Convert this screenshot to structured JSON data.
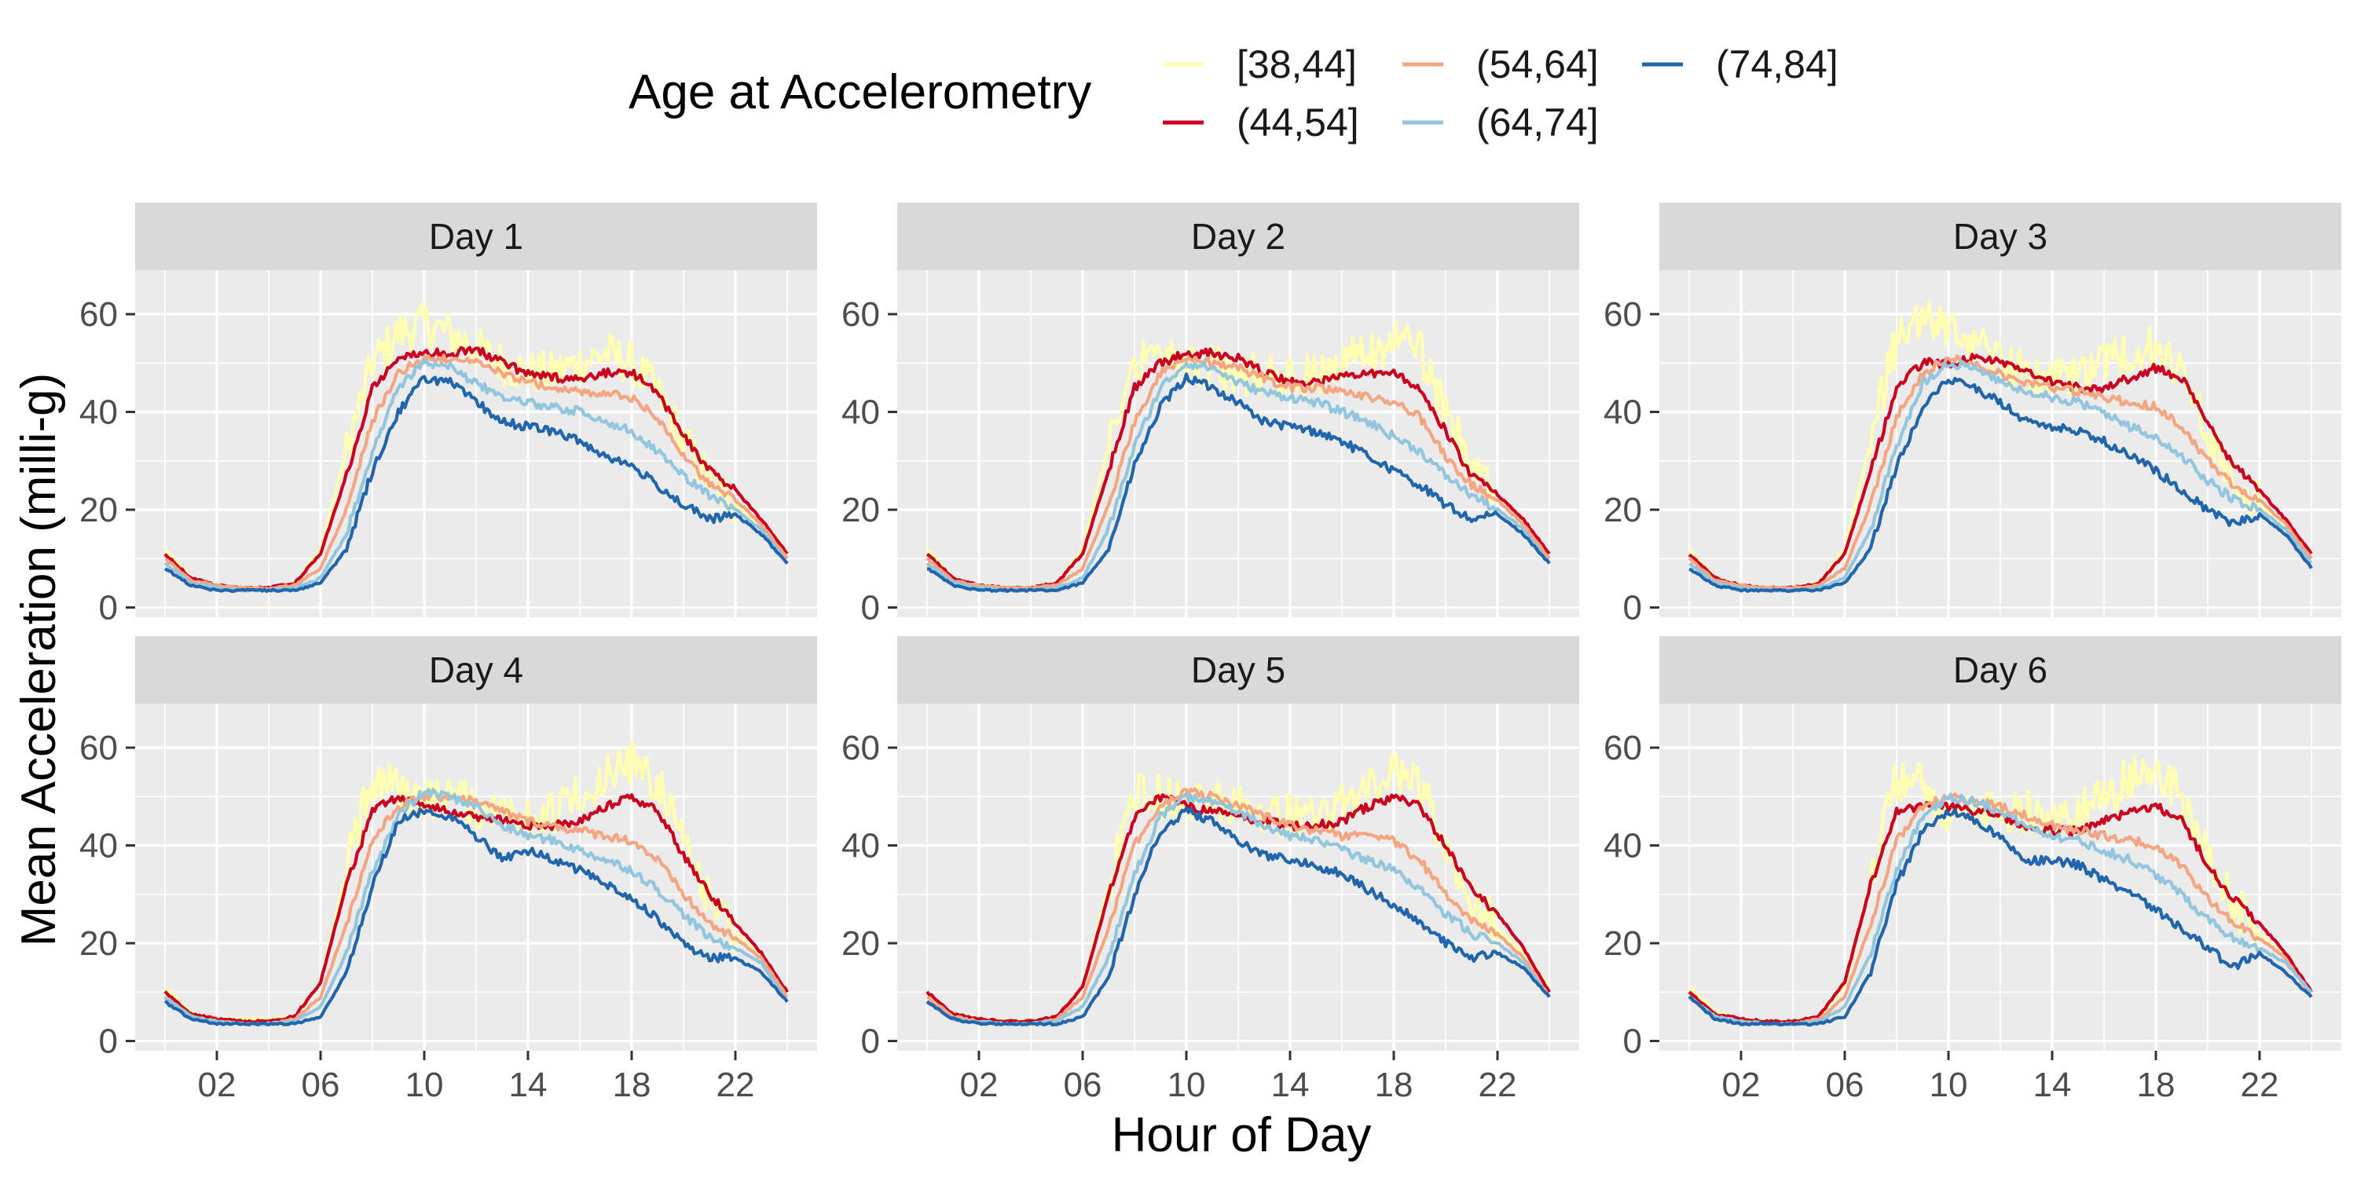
{
  "legend": {
    "title": "Age at Accelerometry"
  },
  "chart_data": {
    "type": "line",
    "xlabel": "Hour of Day",
    "ylabel": "Mean Acceleration (milli-g)",
    "x_range": [
      0,
      24
    ],
    "ylim": [
      -2,
      69
    ],
    "x_ticks": [
      2,
      6,
      10,
      14,
      18,
      22
    ],
    "x_tick_labels": [
      "02",
      "06",
      "10",
      "14",
      "18",
      "22"
    ],
    "y_ticks": [
      0,
      20,
      40,
      60
    ],
    "y_tick_labels": [
      "0",
      "20",
      "40",
      "60"
    ],
    "grid": true,
    "legend_position": "top",
    "facets": [
      "Day 1",
      "Day 2",
      "Day 3",
      "Day 4",
      "Day 5",
      "Day 6"
    ],
    "x": [
      0,
      1,
      2,
      3,
      4,
      5,
      6,
      7,
      8,
      9,
      10,
      11,
      12,
      13,
      14,
      15,
      16,
      17,
      18,
      19,
      20,
      21,
      22,
      23,
      24
    ],
    "series_order": [
      "[38,44]",
      "(44,54]",
      "(54,64]",
      "(64,74]",
      "(74,84]"
    ],
    "colors": {
      "[38,44]": "#ffffb2",
      "(44,54]": "#ca0020",
      "(54,64]": "#f4a582",
      "(64,74]": "#92c5de",
      "(74,84]": "#2166ac"
    },
    "panels": [
      {
        "label": "Day 1",
        "series": [
          {
            "name": "[38,44]",
            "values": [
              12,
              6,
              4.5,
              4,
              4,
              5,
              12,
              32,
              50,
              56,
              58,
              56,
              53,
              50,
              48,
              48,
              50,
              52,
              50,
              44,
              34,
              26,
              21,
              17,
              11
            ]
          },
          {
            "name": "(44,54]",
            "values": [
              11,
              6,
              4.5,
              4,
              4,
              5,
              11,
              27,
              45,
              51,
              52,
              52,
              53,
              50,
              48,
              47,
              47,
              48,
              48,
              44,
              35,
              28,
              24,
              18,
              11
            ]
          },
          {
            "name": "(54,64]",
            "values": [
              10,
              5.5,
              4.5,
              4,
              4,
              4.5,
              8,
              20,
              38,
              48,
              51,
              51,
              50,
              48,
              46,
              45,
              44,
              44,
              43,
              39,
              31,
              25,
              22,
              17,
              10
            ]
          },
          {
            "name": "(64,74]",
            "values": [
              9,
              5,
              4,
              3.5,
              3.5,
              4,
              6,
              15,
              32,
              45,
              50,
              49,
              46,
              43,
              42,
              41,
              40,
              38,
              36,
              32,
              27,
              23,
              20,
              16,
              9
            ]
          },
          {
            "name": "(74,84]",
            "values": [
              8,
              4.5,
              3.5,
              3.5,
              3.5,
              3.5,
              5,
              12,
              28,
              40,
              47,
              46,
              42,
              38,
              37,
              36,
              34,
              31,
              29,
              25,
              21,
              18,
              19,
              15,
              9
            ]
          }
        ]
      },
      {
        "label": "Day 2",
        "series": [
          {
            "name": "[38,44]",
            "values": [
              12,
              6,
              4.5,
              4,
              4,
              5,
              12,
              33,
              51,
              54,
              50,
              49,
              48,
              47,
              47,
              48,
              50,
              52,
              55,
              52,
              40,
              29,
              22,
              17,
              11
            ]
          },
          {
            "name": "(44,54]",
            "values": [
              11,
              6,
              4.5,
              4,
              4,
              5,
              11,
              28,
              45,
              50,
              52,
              52,
              51,
              48,
              46,
              46,
              47,
              48,
              48,
              45,
              36,
              27,
              23,
              18,
              11
            ]
          },
          {
            "name": "(54,64]",
            "values": [
              10,
              5.5,
              4.5,
              4,
              4,
              4.5,
              8,
              21,
              38,
              48,
              51,
              50,
              49,
              47,
              45,
              45,
              44,
              43,
              42,
              39,
              31,
              25,
              22,
              17,
              10
            ]
          },
          {
            "name": "(64,74]",
            "values": [
              9,
              5,
              4,
              3.5,
              3.5,
              4,
              6,
              16,
              33,
              45,
              50,
              49,
              46,
              44,
              43,
              42,
              40,
              38,
              35,
              32,
              27,
              23,
              20,
              16,
              9
            ]
          },
          {
            "name": "(74,84]",
            "values": [
              8,
              4.5,
              3.5,
              3.5,
              3.5,
              3.5,
              5,
              12,
              29,
              41,
              47,
              45,
              42,
              38,
              37,
              36,
              34,
              31,
              28,
              25,
              21,
              18,
              19,
              15,
              9
            ]
          }
        ]
      },
      {
        "label": "Day 3",
        "series": [
          {
            "name": "[38,44]",
            "values": [
              12,
              6,
              4.5,
              4,
              4,
              5,
              12,
              34,
              55,
              60,
              57,
              54,
              50,
              48,
              47,
              47,
              50,
              52,
              53,
              47,
              36,
              27,
              21,
              17,
              11
            ]
          },
          {
            "name": "(44,54]",
            "values": [
              11,
              6,
              4.5,
              4,
              4,
              5,
              11,
              28,
              45,
              50,
              50,
              51,
              50,
              48,
              46,
              45,
              45,
              47,
              49,
              47,
              38,
              29,
              24,
              18,
              11
            ]
          },
          {
            "name": "(54,64]",
            "values": [
              10,
              5.5,
              4.5,
              4,
              4,
              4.5,
              8,
              21,
              39,
              48,
              51,
              50,
              48,
              46,
              45,
              44,
              43,
              42,
              41,
              37,
              30,
              25,
              22,
              17,
              10
            ]
          },
          {
            "name": "(64,74]",
            "values": [
              9,
              5,
              4,
              3.5,
              3.5,
              4,
              6,
              16,
              33,
              46,
              50,
              49,
              46,
              44,
              43,
              42,
              40,
              37,
              35,
              31,
              26,
              22,
              20,
              16,
              9
            ]
          },
          {
            "name": "(74,84]",
            "values": [
              8,
              4.5,
              3.5,
              3.5,
              3.5,
              3.5,
              5,
              12,
              29,
              41,
              47,
              45,
              42,
              38,
              37,
              36,
              34,
              31,
              28,
              24,
              20,
              17,
              19,
              15,
              8
            ]
          }
        ]
      },
      {
        "label": "Day 4",
        "series": [
          {
            "name": "[38,44]",
            "values": [
              11,
              6,
              4.5,
              4.5,
              4.5,
              5,
              12,
              35,
              54,
              52,
              50,
              50,
              48,
              47,
              46,
              47,
              50,
              54,
              57,
              53,
              40,
              29,
              22,
              17,
              10
            ]
          },
          {
            "name": "(44,54]",
            "values": [
              10,
              5.5,
              4.5,
              4,
              4,
              5,
              12,
              32,
              47,
              50,
              48,
              47,
              46,
              45,
              44,
              44,
              45,
              48,
              50,
              47,
              38,
              30,
              24,
              18,
              10
            ]
          },
          {
            "name": "(54,64]",
            "values": [
              9,
              5,
              4,
              3.5,
              3.5,
              4.5,
              9,
              24,
              41,
              48,
              50,
              50,
              49,
              47,
              45,
              44,
              43,
              42,
              41,
              37,
              30,
              24,
              21,
              17,
              9
            ]
          },
          {
            "name": "(64,74]",
            "values": [
              9,
              5,
              4,
              3.5,
              3.5,
              4,
              7,
              18,
              35,
              46,
              51,
              50,
              48,
              44,
              42,
              41,
              39,
              37,
              35,
              31,
              26,
              21,
              19,
              16,
              8
            ]
          },
          {
            "name": "(74,84]",
            "values": [
              8,
              4.5,
              3.5,
              3.5,
              3.5,
              3.5,
              5,
              14,
              32,
              45,
              47,
              46,
              42,
              37,
              39,
              37,
              35,
              32,
              29,
              25,
              20,
              17,
              17,
              14,
              8
            ]
          }
        ]
      },
      {
        "label": "Day 5",
        "series": [
          {
            "name": "[38,44]",
            "values": [
              10,
              5.5,
              4.5,
              4,
              4,
              5,
              11,
              32,
              50,
              50,
              49,
              49,
              48,
              47,
              46,
              46,
              48,
              52,
              56,
              52,
              40,
              30,
              23,
              18,
              11
            ]
          },
          {
            "name": "(44,54]",
            "values": [
              10,
              5.5,
              4.5,
              4,
              4,
              5,
              11,
              30,
              46,
              50,
              48,
              47,
              46,
              45,
              44,
              44,
              45,
              48,
              50,
              48,
              40,
              31,
              26,
              19,
              10
            ]
          },
          {
            "name": "(54,64]",
            "values": [
              9,
              5,
              4,
              3.5,
              3.5,
              4.5,
              9,
              23,
              40,
              48,
              51,
              50,
              48,
              46,
              44,
              43,
              42,
              42,
              41,
              37,
              30,
              25,
              22,
              17,
              9
            ]
          },
          {
            "name": "(64,74]",
            "values": [
              8,
              4.5,
              4,
              3.5,
              3.5,
              4,
              7,
              17,
              34,
              46,
              50,
              49,
              47,
              44,
              42,
              41,
              39,
              37,
              35,
              31,
              26,
              22,
              20,
              16,
              9
            ]
          },
          {
            "name": "(74,84]",
            "values": [
              8,
              4.5,
              3.5,
              3.5,
              3.5,
              3.5,
              5,
              13,
              30,
              43,
              47,
              45,
              41,
              38,
              37,
              36,
              34,
              31,
              28,
              24,
              20,
              17,
              18,
              15,
              9
            ]
          }
        ]
      },
      {
        "label": "Day 6",
        "series": [
          {
            "name": "[38,44]",
            "values": [
              11,
              6,
              4.5,
              4,
              4,
              5,
              11,
              33,
              54,
              52,
              46,
              46,
              47,
              47,
              46,
              47,
              50,
              54,
              55,
              50,
              38,
              28,
              22,
              17,
              10
            ]
          },
          {
            "name": "(44,54]",
            "values": [
              10,
              5.5,
              4.5,
              4,
              4,
              5,
              12,
              32,
              47,
              48,
              48,
              47,
              46,
              44,
              43,
              43,
              45,
              47,
              48,
              45,
              36,
              29,
              24,
              18,
              10
            ]
          },
          {
            "name": "(54,64]",
            "values": [
              9,
              5,
              4,
              3.5,
              3.5,
              4.5,
              9,
              24,
              41,
              48,
              50,
              49,
              48,
              46,
              44,
              43,
              42,
              41,
              40,
              36,
              29,
              24,
              21,
              17,
              9
            ]
          },
          {
            "name": "(64,74]",
            "values": [
              9,
              5,
              4,
              3.5,
              3.5,
              4,
              7,
              18,
              35,
              46,
              50,
              49,
              47,
              44,
              42,
              41,
              39,
              37,
              34,
              30,
              25,
              21,
              19,
              16,
              10
            ]
          },
          {
            "name": "(74,84]",
            "values": [
              9,
              4.5,
              3.5,
              3.5,
              3.5,
              3.5,
              5,
              14,
              32,
              43,
              47,
              45,
              42,
              37,
              37,
              36,
              33,
              30,
              27,
              23,
              19,
              15,
              18,
              14,
              9
            ]
          }
        ]
      }
    ]
  }
}
